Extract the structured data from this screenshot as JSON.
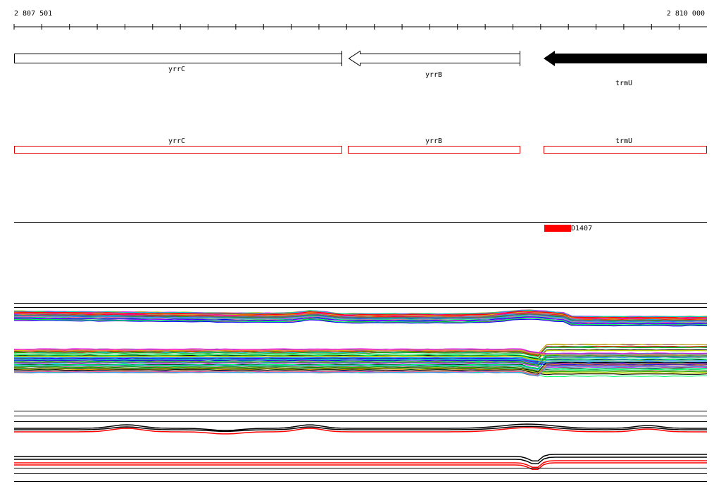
{
  "ruler": {
    "start": "2 807 501",
    "end": "2 810 000"
  },
  "genes": [
    {
      "label": "yrrC"
    },
    {
      "label": "yrrB"
    },
    {
      "label": "trmU"
    }
  ],
  "features": [
    {
      "label": "yrrC"
    },
    {
      "label": "yrrB"
    },
    {
      "label": "trmU"
    }
  ],
  "region": {
    "label": "D1407"
  }
}
